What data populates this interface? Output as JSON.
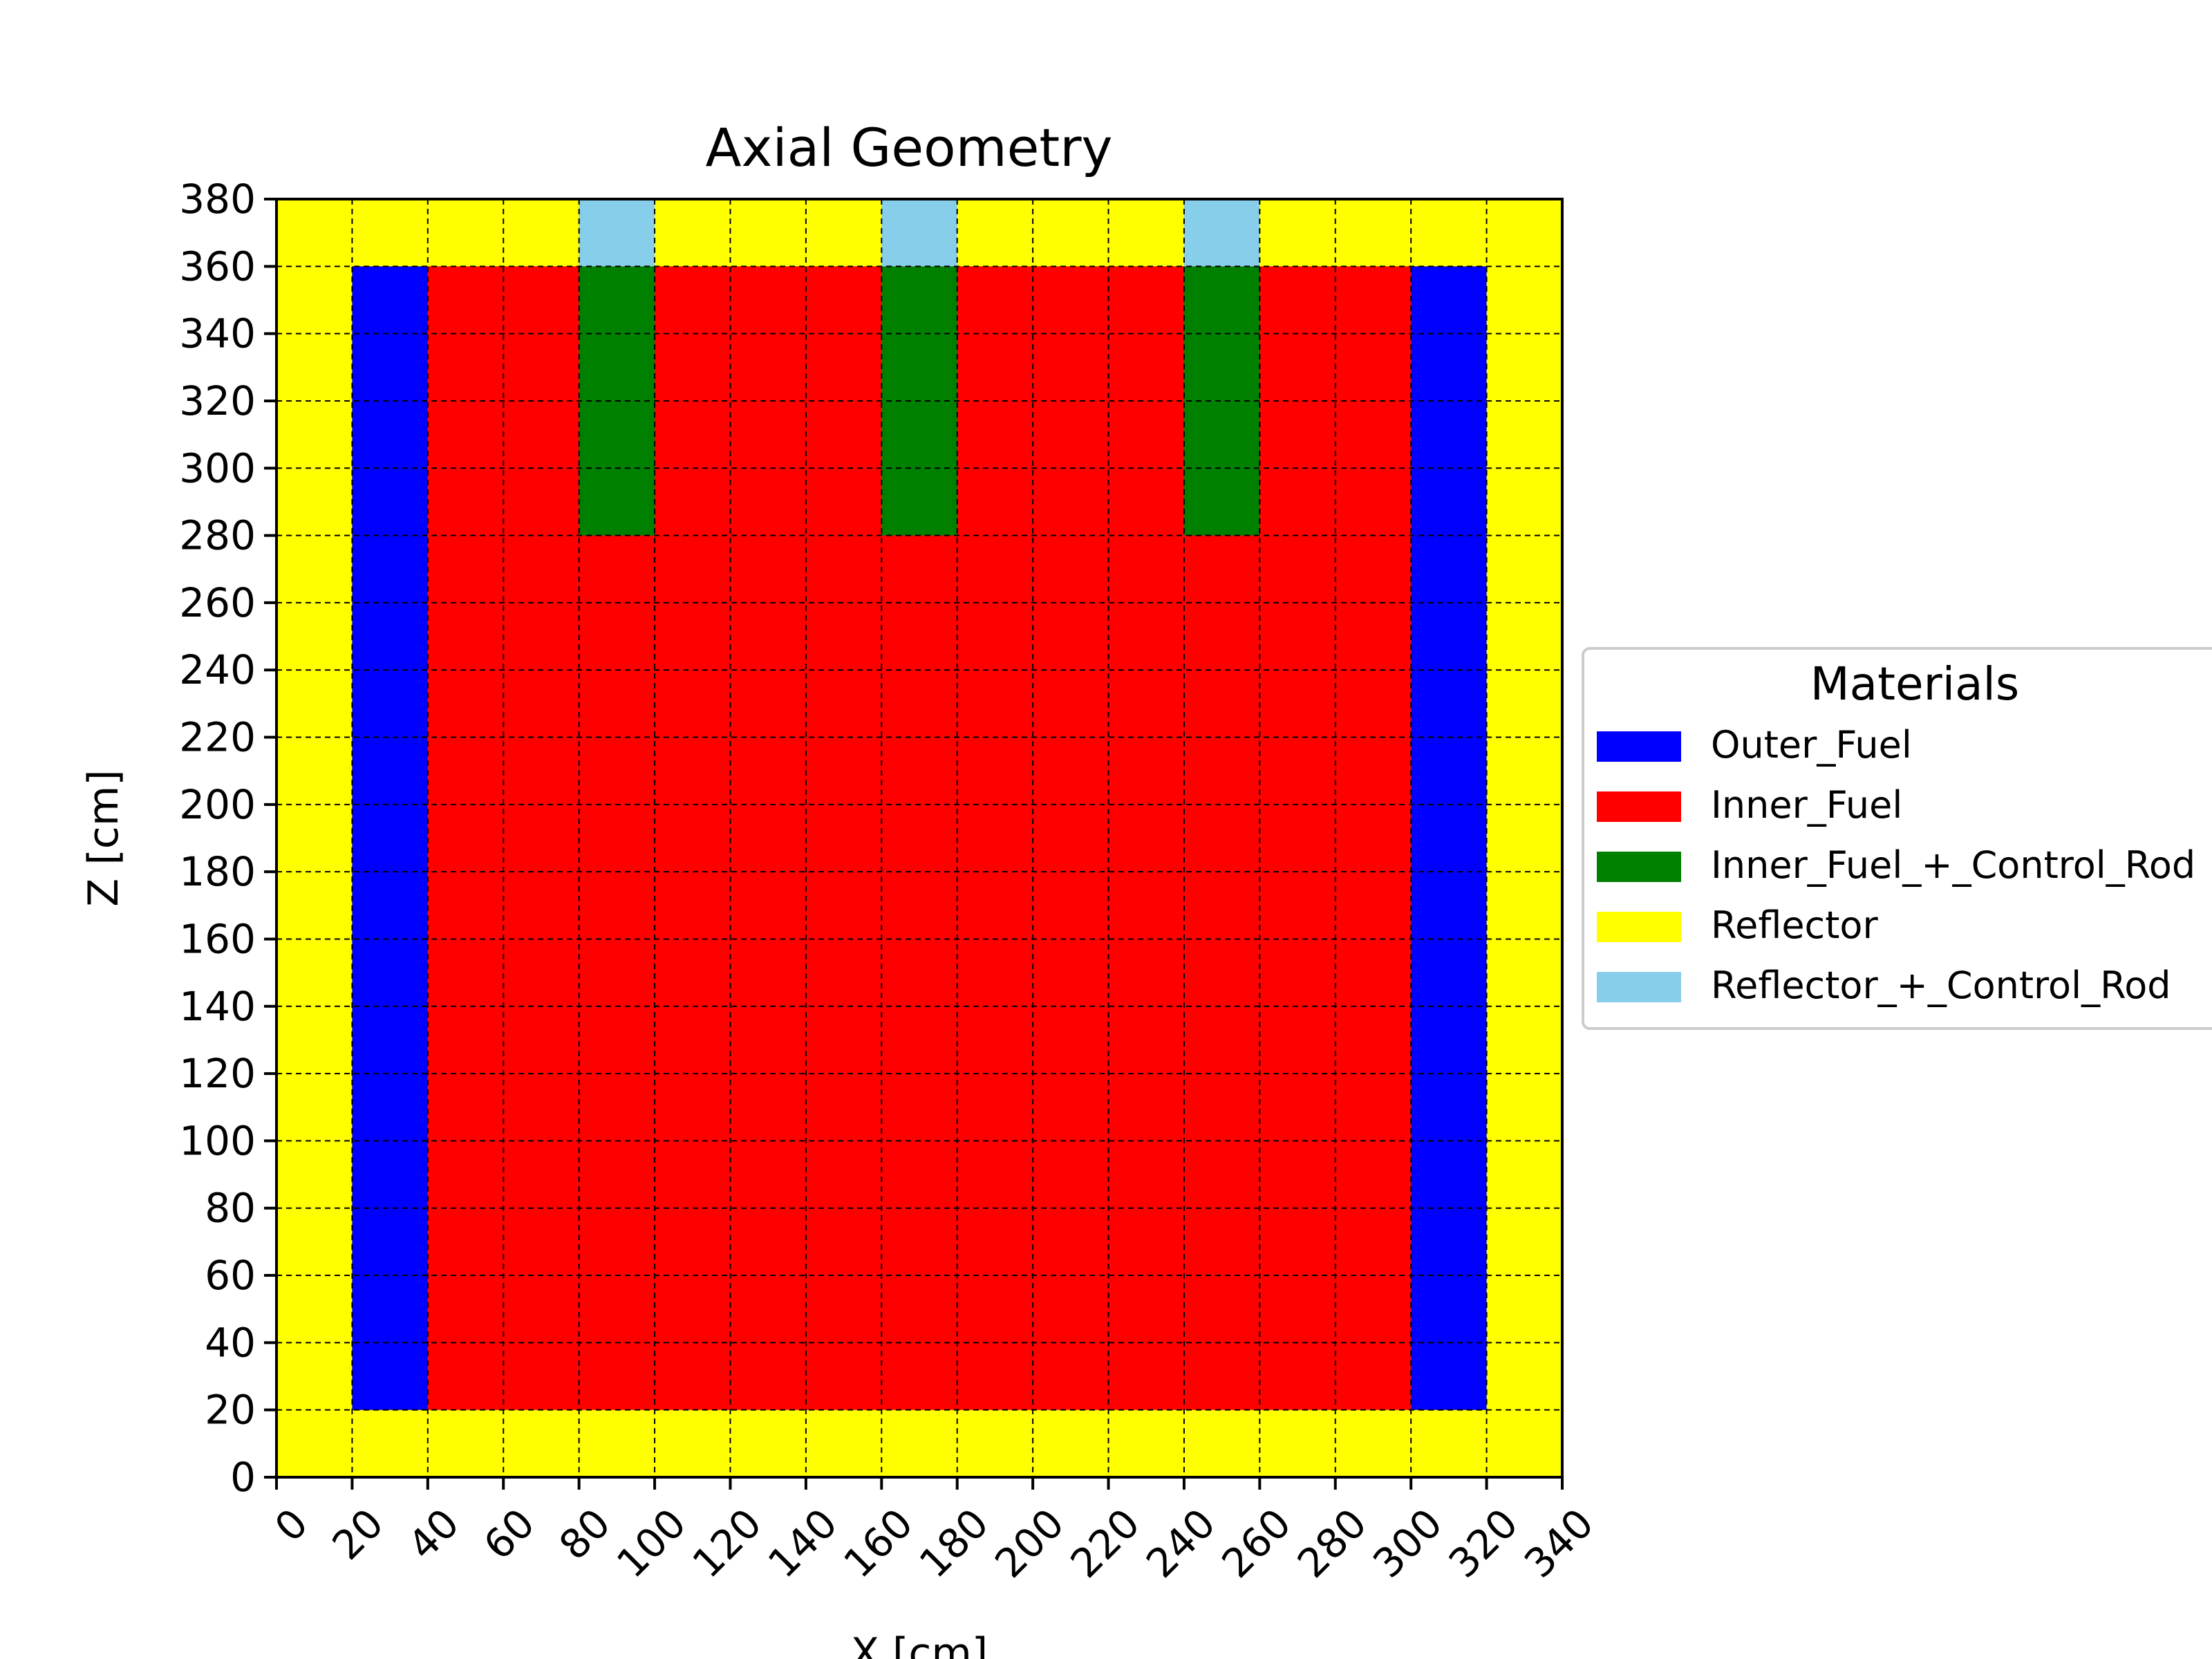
{
  "chart_data": {
    "type": "heatmap",
    "title": "Axial Geometry",
    "xlabel": "X [cm]",
    "ylabel": "Z [cm]",
    "xlim": [
      0,
      340
    ],
    "ylim": [
      0,
      380
    ],
    "x_ticks": [
      0,
      20,
      40,
      60,
      80,
      100,
      120,
      140,
      160,
      180,
      200,
      220,
      240,
      260,
      280,
      300,
      320,
      340
    ],
    "y_ticks": [
      0,
      20,
      40,
      60,
      80,
      100,
      120,
      140,
      160,
      180,
      200,
      220,
      240,
      260,
      280,
      300,
      320,
      340,
      360,
      380
    ],
    "x_tick_rotation": 45,
    "grid": true,
    "grid_style": "dashed",
    "legend_title": "Materials",
    "legend_position": "right",
    "materials": [
      {
        "name": "Outer_Fuel",
        "color": "#0000ff"
      },
      {
        "name": "Inner_Fuel",
        "color": "#ff0000"
      },
      {
        "name": "Inner_Fuel_+_Control_Rod",
        "color": "#008000"
      },
      {
        "name": "Reflector",
        "color": "#ffff00"
      },
      {
        "name": "Reflector_+_Control_Rod",
        "color": "#87ceeb"
      }
    ],
    "regions": [
      {
        "material": "Reflector",
        "x": [
          0,
          340
        ],
        "z": [
          0,
          380
        ]
      },
      {
        "material": "Outer_Fuel",
        "x": [
          20,
          40
        ],
        "z": [
          20,
          360
        ]
      },
      {
        "material": "Outer_Fuel",
        "x": [
          300,
          320
        ],
        "z": [
          20,
          360
        ]
      },
      {
        "material": "Inner_Fuel",
        "x": [
          40,
          300
        ],
        "z": [
          20,
          360
        ]
      },
      {
        "material": "Inner_Fuel_+_Control_Rod",
        "x": [
          80,
          100
        ],
        "z": [
          280,
          360
        ]
      },
      {
        "material": "Inner_Fuel_+_Control_Rod",
        "x": [
          160,
          180
        ],
        "z": [
          280,
          360
        ]
      },
      {
        "material": "Inner_Fuel_+_Control_Rod",
        "x": [
          240,
          260
        ],
        "z": [
          280,
          360
        ]
      },
      {
        "material": "Reflector_+_Control_Rod",
        "x": [
          80,
          100
        ],
        "z": [
          360,
          380
        ]
      },
      {
        "material": "Reflector_+_Control_Rod",
        "x": [
          160,
          180
        ],
        "z": [
          360,
          380
        ]
      },
      {
        "material": "Reflector_+_Control_Rod",
        "x": [
          240,
          260
        ],
        "z": [
          360,
          380
        ]
      }
    ]
  }
}
